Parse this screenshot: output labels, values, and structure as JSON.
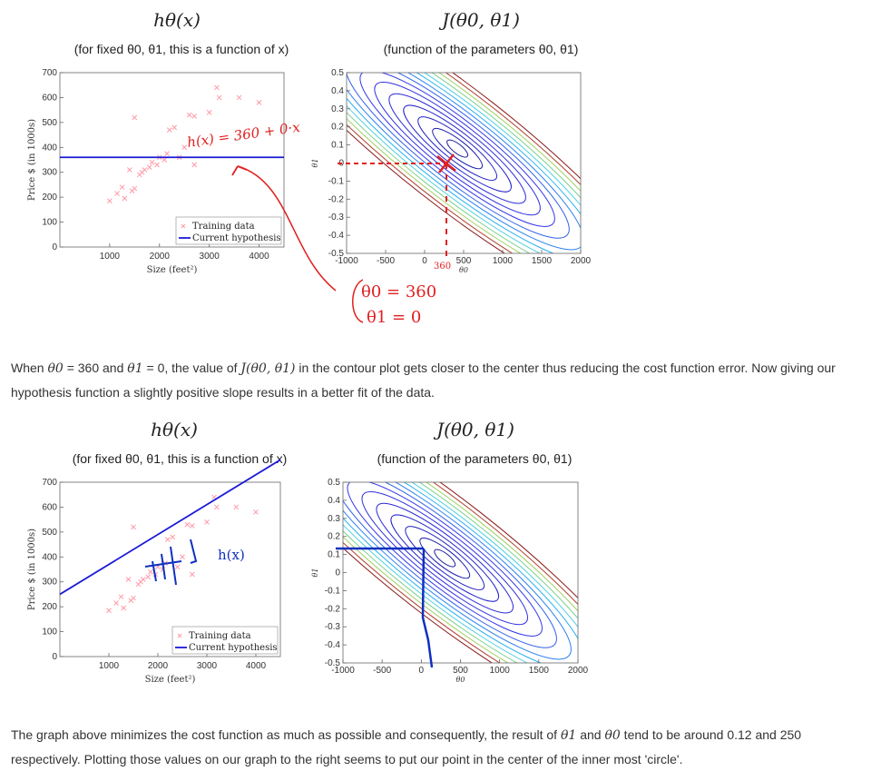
{
  "figure1": {
    "left_title": "hθ(x)",
    "left_subtitle": "(for fixed θ0, θ1, this is a function of x)",
    "right_title": "J(θ0, θ1)",
    "right_subtitle": "(function of the parameters θ0, θ1)",
    "annotation_hx": "h(x) = 360 + 0·x",
    "annotation_theta0": "θ0 = 360",
    "annotation_theta1": "θ1 = 0",
    "annotation_360": "360"
  },
  "paragraph1": {
    "part1": "When ",
    "theta0": "θ0",
    "part2": " = 360 and ",
    "theta1": "θ1",
    "part3": " = 0, the value of ",
    "J": "J(θ0, θ1)",
    "part4": " in the contour plot gets closer to the center thus reducing the cost function error. Now giving our hypothesis function a slightly positive slope results in a better fit of the data."
  },
  "figure2": {
    "left_title": "hθ(x)",
    "left_subtitle": "(for fixed θ0, θ1, this is a function of x)",
    "right_title": "J(θ0, θ1)",
    "right_subtitle": "(function of the parameters θ0, θ1)",
    "annotation_hx": "h(x)"
  },
  "paragraph2": {
    "part1": "The graph above minimizes the cost function as much as possible and consequently, the result of ",
    "theta1": "θ1",
    "part2": " and ",
    "theta0": "θ0",
    "part3": " tend to be around 0.12 and 250 respectively. Plotting those values on our graph to the right seems to put our point in the center of the inner most 'circle'."
  },
  "colors": {
    "hypothesis_line": "#1a1ad6",
    "training_marker": "#ff9aa8",
    "annotation_red": "#e02020",
    "annotation_blue": "#1030c0"
  },
  "chart_data": [
    {
      "type": "scatter",
      "xlabel": "Size (feet²)",
      "ylabel": "Price $ (in 1000s)",
      "xlim": [
        0,
        4500
      ],
      "ylim": [
        0,
        700
      ],
      "xticks": [
        "1000",
        "2000",
        "3000",
        "4000"
      ],
      "yticks": [
        "0",
        "100",
        "200",
        "300",
        "400",
        "500",
        "600",
        "700"
      ],
      "legend": {
        "placement": "bottom-right",
        "entries": [
          "Training data",
          "Current hypothesis"
        ]
      },
      "series": [
        {
          "name": "Training data",
          "points": [
            [
              1000,
              185
            ],
            [
              1150,
              215
            ],
            [
              1250,
              240
            ],
            [
              1300,
              195
            ],
            [
              1400,
              310
            ],
            [
              1450,
              225
            ],
            [
              1500,
              235
            ],
            [
              1600,
              290
            ],
            [
              1650,
              300
            ],
            [
              1700,
              310
            ],
            [
              1800,
              320
            ],
            [
              1850,
              340
            ],
            [
              1950,
              330
            ],
            [
              2000,
              360
            ],
            [
              2100,
              350
            ],
            [
              2150,
              375
            ],
            [
              2200,
              470
            ],
            [
              2300,
              480
            ],
            [
              2400,
              360
            ],
            [
              2500,
              400
            ],
            [
              2600,
              530
            ],
            [
              2700,
              525
            ],
            [
              3000,
              540
            ],
            [
              3150,
              640
            ],
            [
              3200,
              600
            ],
            [
              3600,
              600
            ],
            [
              4000,
              580
            ],
            [
              1500,
              520
            ],
            [
              2700,
              330
            ]
          ]
        },
        {
          "name": "Current hypothesis",
          "line": {
            "theta0": 360,
            "theta1": 0
          }
        }
      ]
    },
    {
      "type": "contour",
      "xlabel": "θ0",
      "ylabel": "θ1",
      "xlim": [
        -1000,
        2000
      ],
      "ylim": [
        -0.5,
        0.5
      ],
      "xticks": [
        "-1000",
        "-500",
        "0",
        "500",
        "1000",
        "1500",
        "2000"
      ],
      "yticks": [
        "0.5",
        "0.4",
        "0.3",
        "0.2",
        "0.1",
        "0",
        "-0.1",
        "-0.2",
        "-0.3",
        "-0.4",
        "-0.5"
      ],
      "marked_point": [
        360,
        0
      ]
    },
    {
      "type": "scatter",
      "xlabel": "Size (feet²)",
      "ylabel": "Price $ (in 1000s)",
      "xlim": [
        0,
        4500
      ],
      "ylim": [
        0,
        700
      ],
      "xticks": [
        "1000",
        "2000",
        "3000",
        "4000"
      ],
      "yticks": [
        "0",
        "100",
        "200",
        "300",
        "400",
        "500",
        "600",
        "700"
      ],
      "legend": {
        "placement": "bottom-right",
        "entries": [
          "Training data",
          "Current hypothesis"
        ]
      },
      "series": [
        {
          "name": "Training data",
          "points": [
            [
              1000,
              185
            ],
            [
              1150,
              215
            ],
            [
              1250,
              240
            ],
            [
              1300,
              195
            ],
            [
              1400,
              310
            ],
            [
              1450,
              225
            ],
            [
              1500,
              235
            ],
            [
              1600,
              290
            ],
            [
              1650,
              300
            ],
            [
              1700,
              310
            ],
            [
              1800,
              320
            ],
            [
              1850,
              340
            ],
            [
              1950,
              330
            ],
            [
              2000,
              360
            ],
            [
              2100,
              350
            ],
            [
              2150,
              375
            ],
            [
              2200,
              470
            ],
            [
              2300,
              480
            ],
            [
              2400,
              360
            ],
            [
              2500,
              400
            ],
            [
              2600,
              530
            ],
            [
              2700,
              525
            ],
            [
              3000,
              540
            ],
            [
              3150,
              640
            ],
            [
              3200,
              600
            ],
            [
              3600,
              600
            ],
            [
              4000,
              580
            ],
            [
              1500,
              520
            ],
            [
              2700,
              330
            ]
          ]
        },
        {
          "name": "Current hypothesis",
          "line": {
            "theta0": 250,
            "theta1": 0.12
          }
        }
      ]
    },
    {
      "type": "contour",
      "xlabel": "θ0",
      "ylabel": "θ1",
      "xlim": [
        -1000,
        2000
      ],
      "ylim": [
        -0.5,
        0.5
      ],
      "xticks": [
        "-1000",
        "-500",
        "0",
        "500",
        "1000",
        "1500",
        "2000"
      ],
      "yticks": [
        "0.5",
        "0.4",
        "0.3",
        "0.2",
        "0.1",
        "0",
        "-0.1",
        "-0.2",
        "-0.3",
        "-0.4",
        "-0.5"
      ],
      "marked_point": [
        250,
        0.12
      ]
    }
  ]
}
